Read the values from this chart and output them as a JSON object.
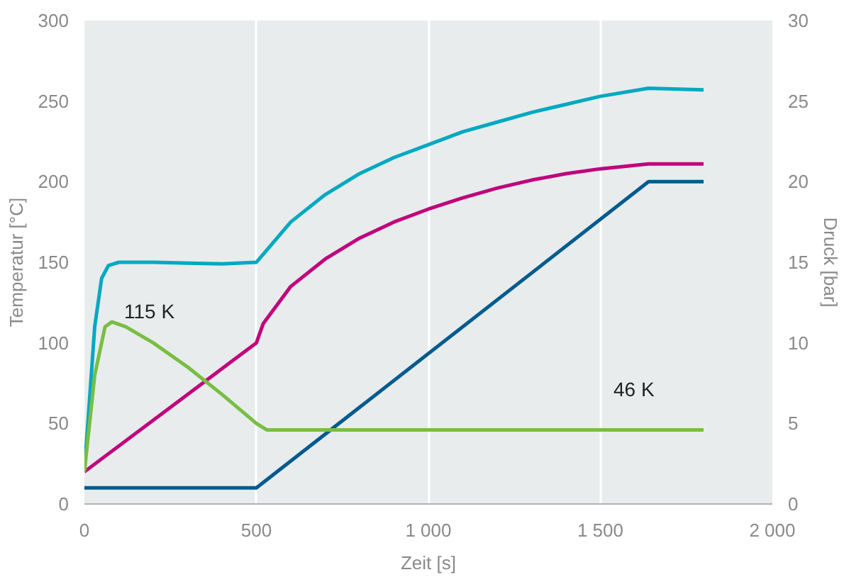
{
  "chart_data": {
    "type": "line",
    "xlabel": "Zeit [s]",
    "ylabel": "Temperatur [°C]",
    "y2label": "Druck [bar]",
    "xlim": [
      0,
      2000
    ],
    "xticks": [
      0,
      500,
      {
        "value": 1000,
        "label": "1 000"
      },
      {
        "value": 1500,
        "label": "1 500"
      },
      {
        "value": 2000,
        "label": "2 000"
      }
    ],
    "ylim": [
      0,
      300
    ],
    "yticks": [
      0,
      50,
      100,
      150,
      200,
      250,
      300
    ],
    "y2lim": [
      0,
      30
    ],
    "y2ticks": [
      0,
      5,
      10,
      15,
      20,
      25,
      30
    ],
    "grid": "x",
    "line_style": "solid",
    "marker": "none",
    "series": [
      {
        "color": "#00a9c1",
        "x": [
          0,
          30,
          50,
          70,
          100,
          200,
          400,
          500,
          520,
          600,
          700,
          800,
          900,
          1000,
          1100,
          1200,
          1300,
          1400,
          1500,
          1640,
          1800
        ],
        "values": [
          20,
          110,
          140,
          148,
          150,
          150,
          149,
          150,
          155,
          175,
          192,
          205,
          215,
          223,
          231,
          237,
          243,
          248,
          253,
          258,
          257
        ]
      },
      {
        "color": "#c0057d",
        "x": [
          0,
          500,
          520,
          600,
          700,
          800,
          900,
          1000,
          1100,
          1200,
          1300,
          1400,
          1500,
          1640,
          1800
        ],
        "values": [
          20,
          100,
          112,
          135,
          152,
          165,
          175,
          183,
          190,
          196,
          201,
          205,
          208,
          211,
          211
        ]
      },
      {
        "color": "#005b8f",
        "axis": "y2",
        "x": [
          0,
          500,
          1640,
          1800
        ],
        "values": [
          1,
          1,
          20,
          20
        ]
      },
      {
        "color": "#78be43",
        "x": [
          0,
          30,
          60,
          80,
          120,
          200,
          300,
          400,
          500,
          530,
          1800
        ],
        "values": [
          20,
          80,
          110,
          113,
          110,
          100,
          85,
          68,
          50,
          46,
          46
        ]
      }
    ],
    "annotations": [
      "115 K",
      "46 K"
    ]
  }
}
